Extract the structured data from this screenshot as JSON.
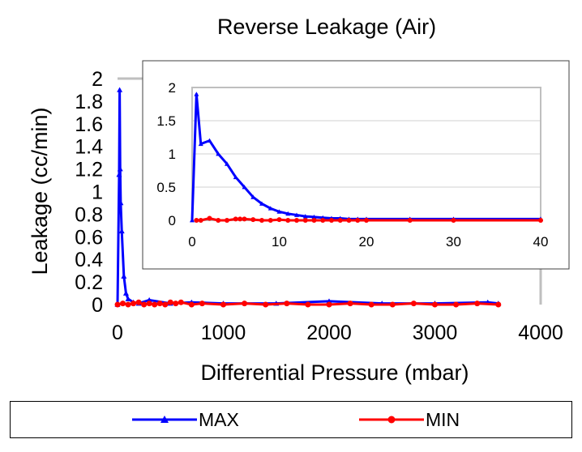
{
  "chart_data": [
    {
      "type": "line",
      "title": "Reverse Leakage (Air)",
      "xlabel": "Differential Pressure (mbar)",
      "ylabel": "Leakage (cc/min)",
      "xlim": [
        0,
        4000
      ],
      "ylim": [
        0,
        2
      ],
      "x_ticks": [
        "0",
        "1000",
        "2000",
        "3000",
        "4000"
      ],
      "y_ticks": [
        "0",
        "0.2",
        "0.4",
        "0.6",
        "0.8",
        "1",
        "1.2",
        "1.4",
        "1.6",
        "1.8",
        "2"
      ],
      "grid": false,
      "legend_position": "bottom",
      "series": [
        {
          "name": "MAX",
          "color": "#0000ff",
          "marker": "triangle",
          "x": [
            0,
            15,
            20,
            25,
            30,
            40,
            60,
            80,
            100,
            150,
            200,
            300,
            500,
            700,
            1000,
            1500,
            2000,
            2500,
            3000,
            3500,
            3600
          ],
          "y": [
            0,
            1.15,
            1.9,
            1.2,
            0.9,
            0.65,
            0.25,
            0.1,
            0.05,
            0.02,
            0.01,
            0.04,
            0.01,
            0.02,
            0.01,
            0.01,
            0.03,
            0.01,
            0.01,
            0.02,
            0.01
          ]
        },
        {
          "name": "MIN",
          "color": "#ff0000",
          "marker": "circle",
          "x": [
            0,
            50,
            100,
            150,
            200,
            250,
            300,
            350,
            400,
            450,
            500,
            550,
            600,
            700,
            800,
            1000,
            1200,
            1400,
            1600,
            1800,
            2000,
            2200,
            2400,
            2600,
            2800,
            3000,
            3200,
            3400,
            3600
          ],
          "y": [
            0,
            0.01,
            0,
            0.01,
            0.02,
            0,
            0.01,
            0,
            0.01,
            0,
            0.02,
            0.01,
            0.02,
            0,
            0.01,
            0,
            0.01,
            0,
            0.01,
            0,
            0,
            0.01,
            0,
            0,
            0.01,
            0,
            0,
            0.01,
            0
          ]
        }
      ]
    },
    {
      "type": "line",
      "title": "",
      "xlabel": "",
      "ylabel": "",
      "xlim": [
        0,
        40
      ],
      "ylim": [
        0,
        2
      ],
      "x_ticks": [
        "0",
        "10",
        "20",
        "30",
        "40"
      ],
      "y_ticks": [
        "0",
        "0.5",
        "1",
        "1.5",
        "2"
      ],
      "grid": true,
      "series": [
        {
          "name": "MAX",
          "color": "#0000ff",
          "marker": "triangle",
          "x": [
            0,
            0.5,
            1,
            2,
            3,
            4,
            5,
            6,
            7,
            8,
            9,
            10,
            11,
            12,
            13,
            14,
            15,
            16,
            17,
            18,
            19,
            20,
            25,
            30,
            40
          ],
          "y": [
            0,
            1.9,
            1.15,
            1.2,
            1.0,
            0.85,
            0.65,
            0.5,
            0.35,
            0.25,
            0.18,
            0.13,
            0.1,
            0.08,
            0.06,
            0.05,
            0.04,
            0.03,
            0.03,
            0.02,
            0.02,
            0.02,
            0.02,
            0.02,
            0.02
          ]
        },
        {
          "name": "MIN",
          "color": "#ff0000",
          "marker": "circle",
          "x": [
            0.5,
            1,
            2,
            3,
            4,
            5,
            5.5,
            6,
            7,
            8,
            9,
            10,
            11,
            12,
            13,
            14,
            15,
            16,
            17,
            18,
            19,
            20,
            25,
            30,
            40
          ],
          "y": [
            0,
            0,
            0.03,
            0,
            0,
            0.02,
            0.02,
            0.02,
            0.01,
            0,
            0,
            0.01,
            0,
            0,
            0,
            0,
            0,
            0,
            0,
            0,
            0,
            0,
            0,
            0,
            0
          ]
        }
      ]
    }
  ]
}
